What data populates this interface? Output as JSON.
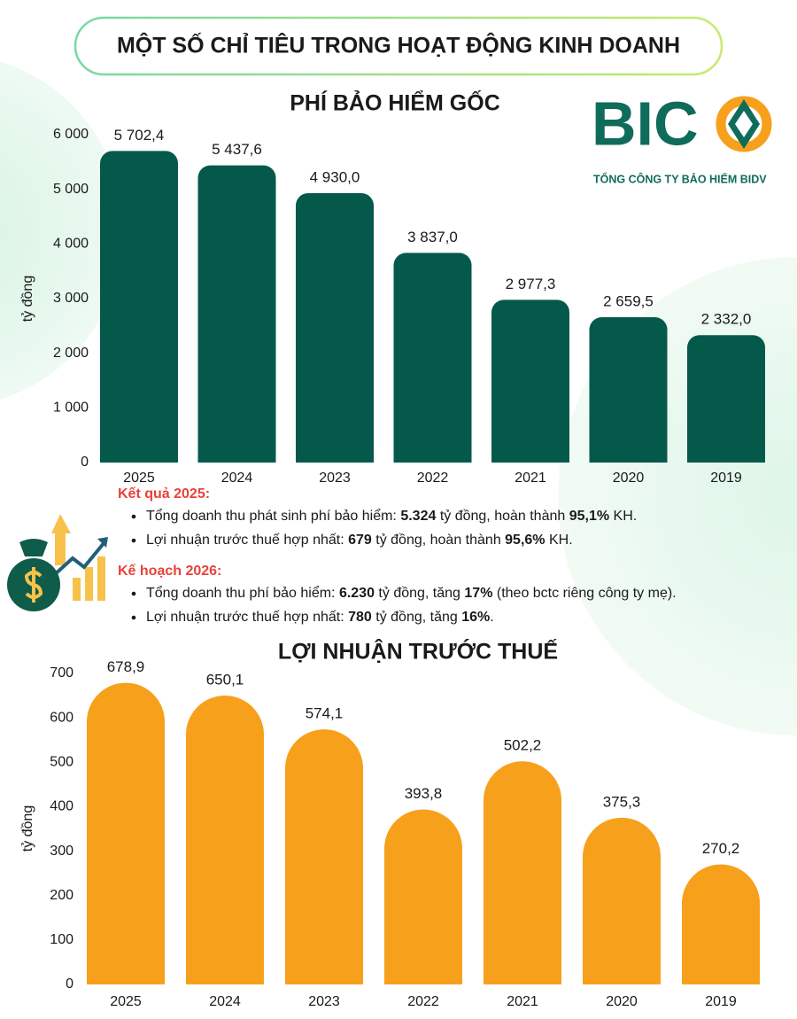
{
  "header": {
    "title": "MỘT SỐ CHỈ TIÊU TRONG HOẠT ĐỘNG KINH DOANH"
  },
  "logo": {
    "text": "BIC",
    "tagline": "TỔNG CÔNG TY BẢO HIỂM BIDV"
  },
  "notes": [
    {
      "heading": "Kết quả 2025:",
      "items": [
        [
          {
            "text": "Tổng doanh thu phát sinh phí bảo hiểm: "
          },
          {
            "text": "5.324",
            "bold": true
          },
          {
            "text": " tỷ đồng, hoàn thành "
          },
          {
            "text": "95,1%",
            "bold": true
          },
          {
            "text": " KH."
          }
        ],
        [
          {
            "text": "Lợi nhuận trước thuế hợp nhất: "
          },
          {
            "text": "679",
            "bold": true
          },
          {
            "text": " tỷ đồng, hoàn thành "
          },
          {
            "text": "95,6%",
            "bold": true
          },
          {
            "text": " KH."
          }
        ]
      ]
    },
    {
      "heading": "Kế hoạch 2026:",
      "items": [
        [
          {
            "text": "Tổng doanh thu phí bảo hiểm: "
          },
          {
            "text": "6.230",
            "bold": true
          },
          {
            "text": " tỷ đồng, tăng "
          },
          {
            "text": "17%",
            "bold": true
          },
          {
            "text": " (theo bctc riêng công ty mẹ)."
          }
        ],
        [
          {
            "text": "Lợi nhuận trước thuế hợp nhất: "
          },
          {
            "text": "780",
            "bold": true
          },
          {
            "text": " tỷ đồng, tăng "
          },
          {
            "text": "16%",
            "bold": true
          },
          {
            "text": "."
          }
        ]
      ]
    }
  ],
  "chart_data": [
    {
      "type": "bar",
      "title": "PHÍ BẢO HIỂM GỐC",
      "ylabel": "tỷ đồng",
      "categories": [
        "2025",
        "2024",
        "2023",
        "2022",
        "2021",
        "2020",
        "2019"
      ],
      "values": [
        5702.4,
        5437.6,
        4930.0,
        3837.0,
        2977.3,
        2659.5,
        2332.0
      ],
      "value_labels": [
        "5 702,4",
        "5 437,6",
        "4 930,0",
        "3 837,0",
        "2 977,3",
        "2 659,5",
        "2 332,0"
      ],
      "color": "#04594b",
      "ylim": [
        0,
        6000
      ],
      "yticks": [
        0,
        {
          "value": 1000,
          "label": "1 000"
        },
        {
          "value": 2000,
          "label": "2 000"
        },
        {
          "value": 3000,
          "label": "3 000"
        },
        {
          "value": 4000,
          "label": "4 000"
        },
        {
          "value": 5000,
          "label": "5 000"
        },
        {
          "value": 6000,
          "label": "6 000"
        }
      ]
    },
    {
      "type": "bar",
      "title": "LỢI NHUẬN TRƯỚC THUẾ",
      "ylabel": "tỷ đồng",
      "categories": [
        "2025",
        "2024",
        "2023",
        "2022",
        "2021",
        "2020",
        "2019"
      ],
      "values": [
        678.9,
        650.1,
        574.1,
        393.8,
        502.2,
        375.3,
        270.2
      ],
      "value_labels": [
        "678,9",
        "650,1",
        "574,1",
        "393,8",
        "502,2",
        "375,3",
        "270,2"
      ],
      "color": "#f7a01c",
      "ylim": [
        0,
        700
      ],
      "yticks": [
        0,
        100,
        200,
        300,
        400,
        500,
        600,
        700
      ]
    }
  ]
}
